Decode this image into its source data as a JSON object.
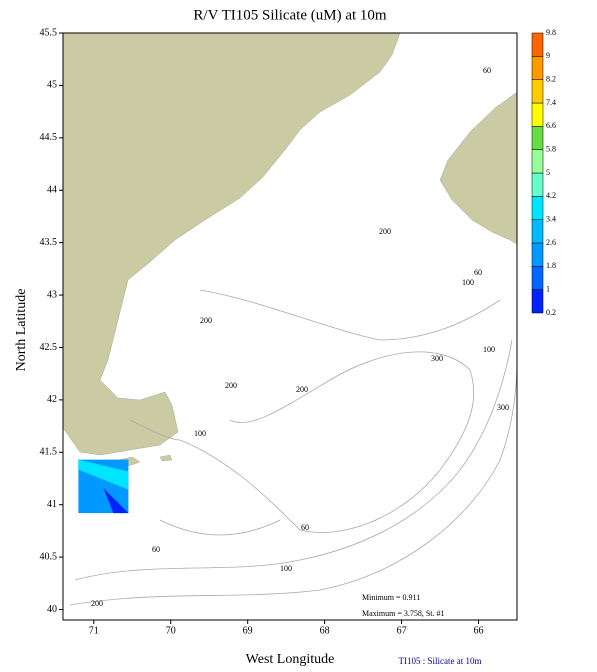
{
  "chart_data": {
    "type": "map",
    "title": "R/V TI105 Silicate (uM) at 10m",
    "x_label": "West Longitude",
    "y_label": "North Latitude",
    "xlim": [
      71.4,
      65.5
    ],
    "ylim": [
      39.9,
      45.5
    ],
    "xticks": [
      71,
      70,
      69,
      68,
      67,
      66
    ],
    "yticks": [
      40,
      40.5,
      41,
      41.5,
      42,
      42.5,
      43,
      43.5,
      44,
      44.5,
      45,
      45.5
    ],
    "land_color": "#cbcba3",
    "colorbar": {
      "levels": [
        0.2,
        1,
        1.8,
        2.6,
        3.4,
        4.2,
        5,
        5.8,
        6.6,
        7.4,
        8.2,
        9,
        9.8
      ],
      "colors": [
        "#0022ff",
        "#0066ff",
        "#0099ff",
        "#00bbff",
        "#00e5ff",
        "#66ffcc",
        "#99ff99",
        "#66dd44",
        "#ffff00",
        "#ffcc00",
        "#ff9900",
        "#ff6600"
      ]
    },
    "contour_labels": [
      60,
      200,
      60,
      100,
      200,
      100,
      300,
      200,
      200,
      300,
      100,
      60,
      60,
      100,
      200
    ],
    "annotations": [
      "Minimum = 0.911",
      "Maximum = 3.758, St. #1"
    ],
    "footer": "TI105 : Silicate at 10m"
  }
}
